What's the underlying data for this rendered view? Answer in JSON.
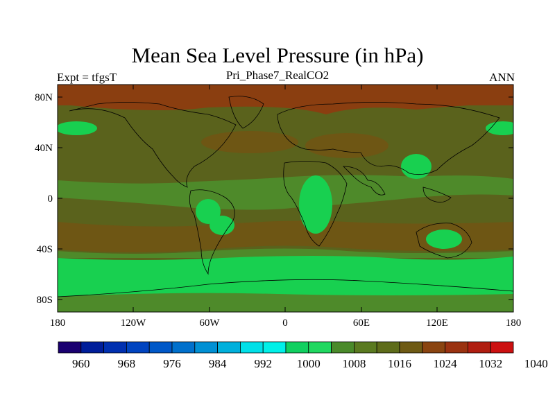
{
  "title": "Mean Sea Level Pressure (in hPa)",
  "subtitle_left": "Expt = tfgsT",
  "subtitle_center": "Pri_Phase7_RealCO2",
  "subtitle_right": "ANN",
  "lat_ticks": [
    "80N",
    "40N",
    "0",
    "40S",
    "80S"
  ],
  "lon_ticks": [
    "180",
    "120W",
    "60W",
    "0",
    "60E",
    "120E",
    "180"
  ],
  "colorbar": {
    "colors": [
      "#1a0070",
      "#001e9a",
      "#0030b0",
      "#0044c0",
      "#0058c8",
      "#0070cc",
      "#0090d4",
      "#00b0dc",
      "#00e0e8",
      "#00f0e8",
      "#10d060",
      "#20d860",
      "#4a8a2a",
      "#5a7a20",
      "#5e6c1a",
      "#6e5a14",
      "#8a4410",
      "#9a3210",
      "#b01e10",
      "#cc1010"
    ],
    "labels": [
      "960",
      "968",
      "976",
      "984",
      "992",
      "1000",
      "1008",
      "1016",
      "1024",
      "1032",
      "1040"
    ]
  },
  "map_colors": {
    "high": "#8a3e10",
    "mid_high": "#6e5614",
    "mid": "#5a621c",
    "mid_low": "#4e8a2a",
    "low": "#18d050"
  }
}
